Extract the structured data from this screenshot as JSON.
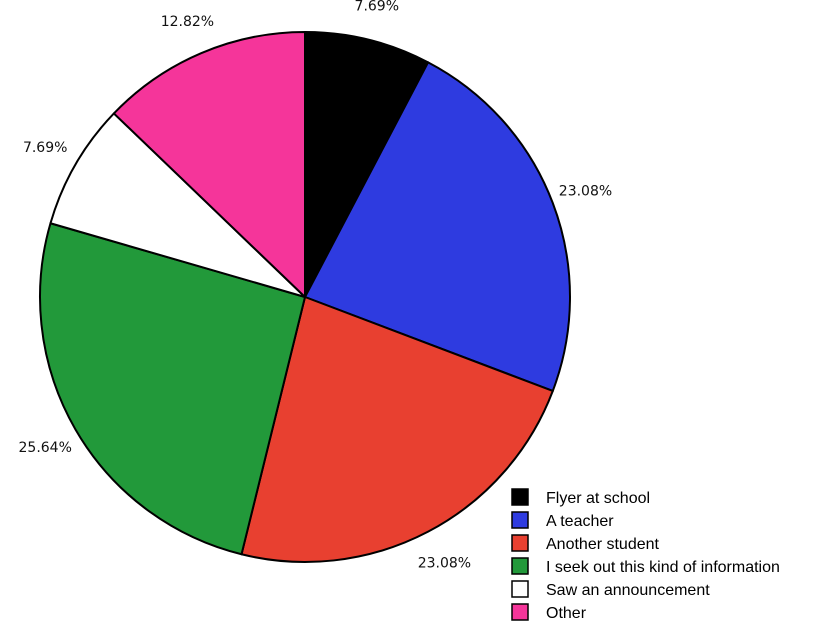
{
  "chart_data": {
    "type": "pie",
    "title": "",
    "legend_placement": "bottom-right",
    "categories": [
      "Flyer at school",
      "A teacher",
      "Another student",
      "I seek out this kind of information",
      "Saw an announcement",
      "Other"
    ],
    "values": [
      7.69,
      23.08,
      23.08,
      25.64,
      7.69,
      12.82
    ],
    "value_labels": [
      "7.69%",
      "23.08%",
      "23.08%",
      "25.64%",
      "7.69%",
      "12.82%"
    ],
    "colors": [
      "#000000",
      "#2e3be0",
      "#e84030",
      "#22993a",
      "#ffffff",
      "#f5359a"
    ]
  }
}
